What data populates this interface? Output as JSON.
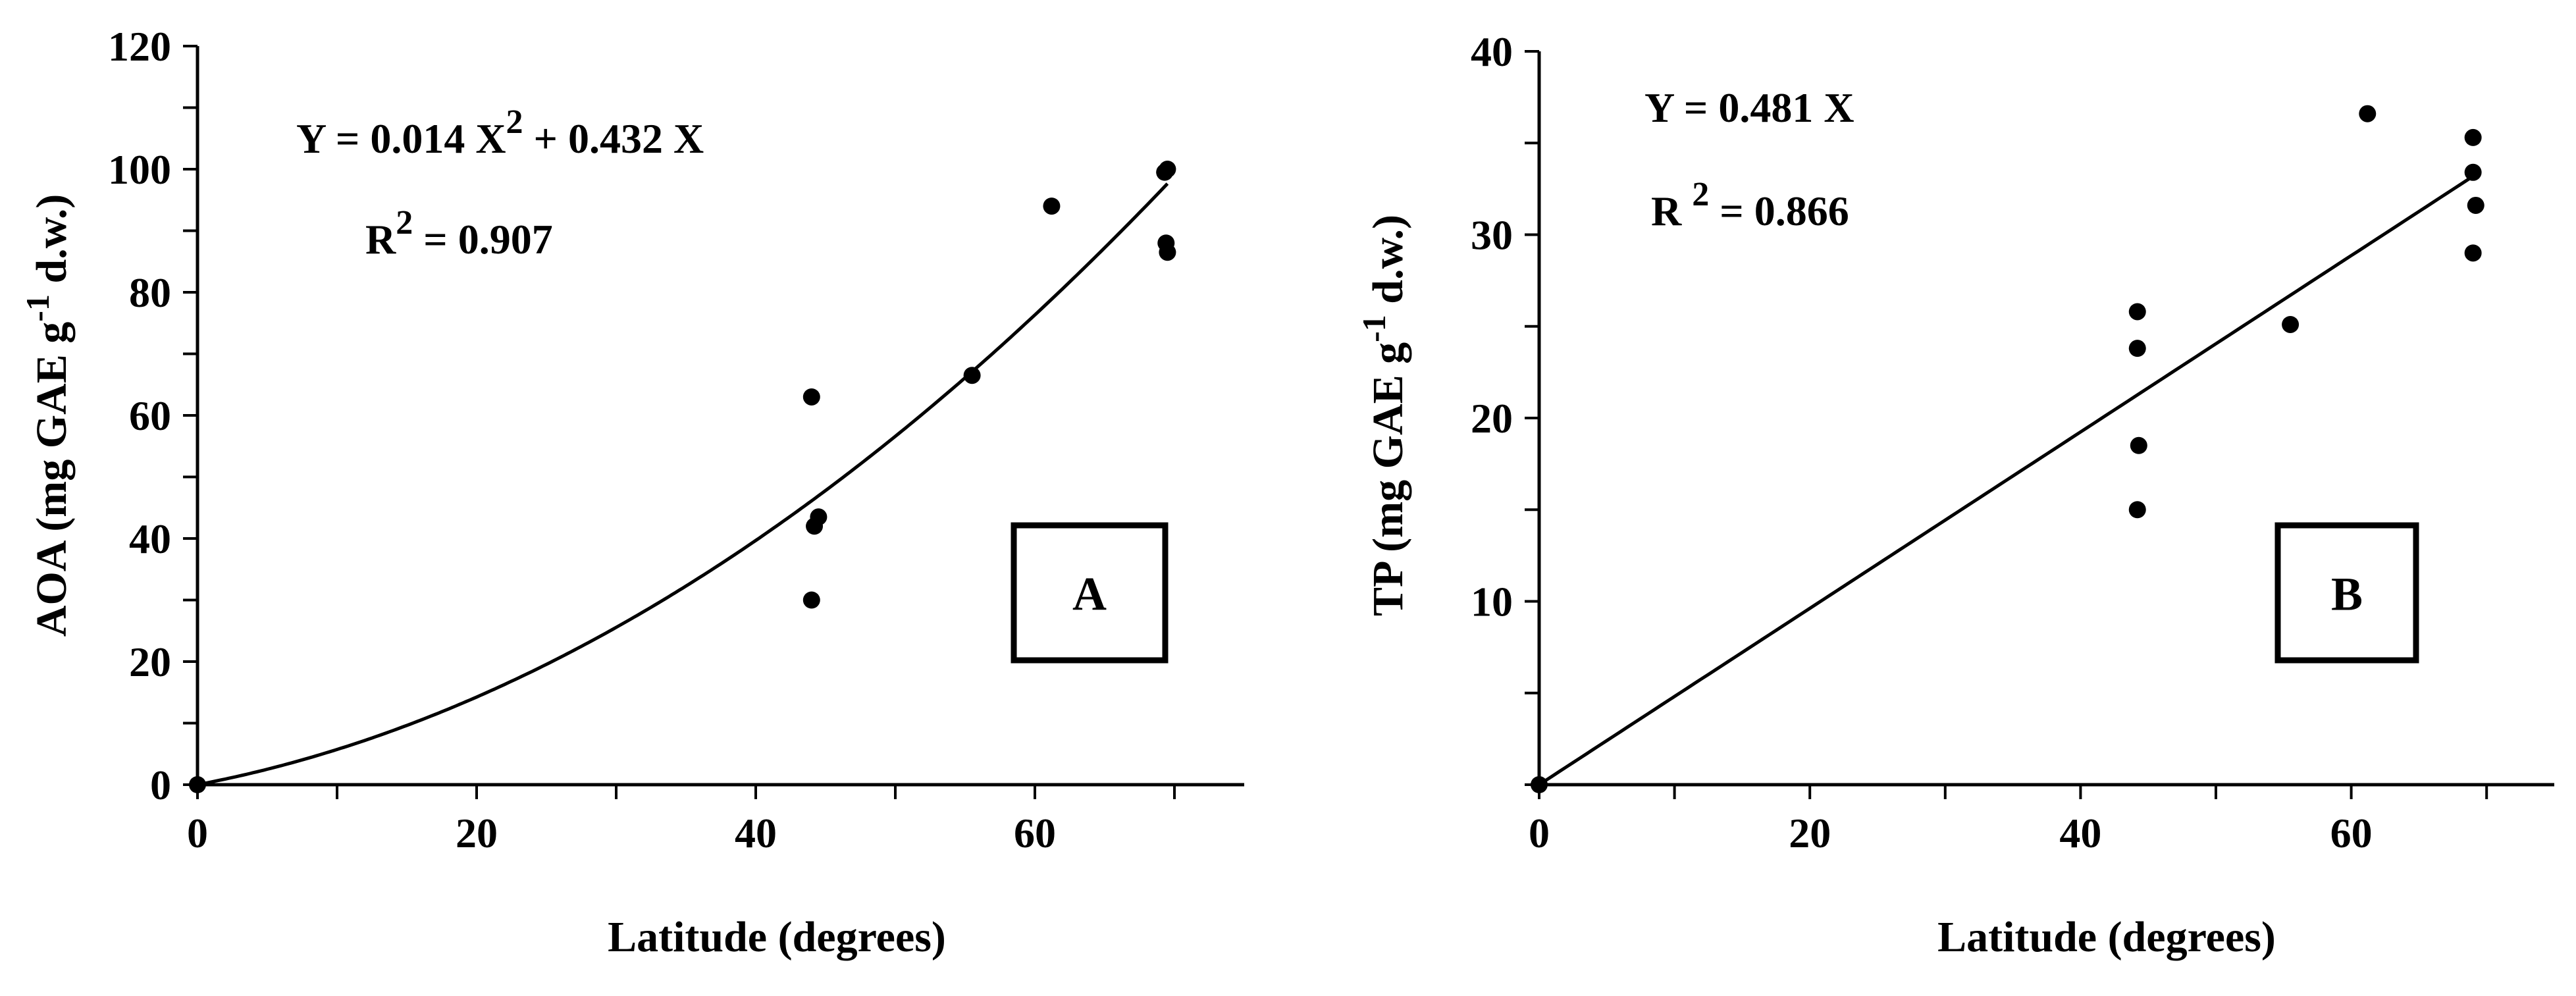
{
  "chart_data": [
    {
      "type": "scatter",
      "panel_label": "A",
      "xlabel": "Latitude (degrees)",
      "ylabel": {
        "main": "AOA (mg GAE g",
        "sup": "-1",
        "end": " d.w.)"
      },
      "xlim": [
        0,
        75
      ],
      "ylim": [
        0,
        120
      ],
      "xticks": [
        "0",
        "20",
        "40",
        "60"
      ],
      "yticks": [
        "0",
        "20",
        "40",
        "60",
        "80",
        "100",
        "120"
      ],
      "equation": {
        "pre": "Y = 0.014 X",
        "sup": "2",
        "post": " + 0.432 X"
      },
      "r2": {
        "pre": "R",
        "sup": "2",
        "post": " = 0.907"
      },
      "fit": {
        "type": "quadratic",
        "a": 0.014,
        "b": 0.432,
        "x_range": [
          0,
          69.5
        ]
      },
      "points": [
        {
          "x": 0,
          "y": 0
        },
        {
          "x": 44.0,
          "y": 63
        },
        {
          "x": 44.5,
          "y": 43.5
        },
        {
          "x": 44.2,
          "y": 42
        },
        {
          "x": 44.0,
          "y": 30
        },
        {
          "x": 55.5,
          "y": 66.5
        },
        {
          "x": 61.2,
          "y": 94
        },
        {
          "x": 69.5,
          "y": 100
        },
        {
          "x": 69.3,
          "y": 99.5
        },
        {
          "x": 69.4,
          "y": 88
        },
        {
          "x": 69.5,
          "y": 86.5
        }
      ]
    },
    {
      "type": "scatter",
      "panel_label": "B",
      "xlabel": "Latitude (degrees)",
      "ylabel": {
        "main": "TP (mg GAE g",
        "sup": "-1",
        "end": " d.w.)"
      },
      "xlim": [
        0,
        75
      ],
      "ylim": [
        0,
        40
      ],
      "xticks": [
        "0",
        "20",
        "40",
        "60"
      ],
      "yticks": [
        "10",
        "20",
        "30",
        "40"
      ],
      "equation": {
        "pre": "Y = 0.481 X",
        "sup": "",
        "post": ""
      },
      "r2": {
        "pre": "R ",
        "sup": "2",
        "post": " = 0.866"
      },
      "fit": {
        "type": "linear",
        "a": 0,
        "b": 0.481,
        "x_range": [
          0,
          69
        ]
      },
      "points": [
        {
          "x": 0,
          "y": 0
        },
        {
          "x": 44.2,
          "y": 25.8
        },
        {
          "x": 44.2,
          "y": 23.8
        },
        {
          "x": 44.3,
          "y": 18.5
        },
        {
          "x": 44.2,
          "y": 15
        },
        {
          "x": 55.5,
          "y": 25.1
        },
        {
          "x": 61.2,
          "y": 36.6
        },
        {
          "x": 69.0,
          "y": 35.3
        },
        {
          "x": 69.0,
          "y": 33.4
        },
        {
          "x": 69.2,
          "y": 31.6
        },
        {
          "x": 69.0,
          "y": 29
        }
      ]
    }
  ]
}
